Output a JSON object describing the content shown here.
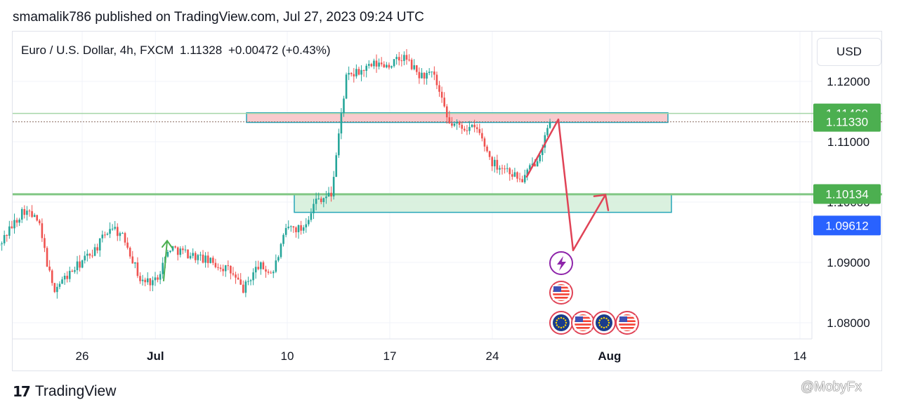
{
  "header": {
    "published_line": "smamalik786 published on TradingView.com, Jul 27, 2023 09:24 UTC"
  },
  "symbol": {
    "name": "Euro / U.S. Dollar, 4h, FXCM",
    "price": "1.11328",
    "change": "+0.00472 (+0.43%)"
  },
  "currency_button": "USD",
  "footer": {
    "brand": "TradingView",
    "watermark": "@MobyFx"
  },
  "colors": {
    "up": "#26a69a",
    "down": "#ef5350",
    "resistance_zone": "#f8c4c8",
    "support_zone": "#d6f0dc",
    "zone_border": "#26a5b8",
    "level_green": "#4caf50",
    "level_blue": "#2962ff",
    "annotation_red": "#e04356",
    "annotation_green": "#4caf50",
    "event_purple": "#8e24aa"
  },
  "chart_data": {
    "type": "candlestick",
    "symbol": "EURUSD",
    "timeframe": "4h",
    "ylim": [
      1.0765,
      1.1265
    ],
    "y_ticks": [
      "1.12000",
      "1.11000",
      "1.10000",
      "1.09000",
      "1.08000"
    ],
    "x_ticks": [
      "26",
      "Jul",
      "10",
      "17",
      "24",
      "Aug",
      "14"
    ],
    "price_labels": [
      {
        "value": 1.11469,
        "label": "1.11469",
        "color": "#4caf50"
      },
      {
        "value": 1.1133,
        "label": "1.11330",
        "color": "#4caf50"
      },
      {
        "value": 1.10134,
        "label": "1.10134",
        "color": "#4caf50"
      },
      {
        "value": 1.09612,
        "label": "1.09612",
        "color": "#2962ff"
      }
    ],
    "horizontal_lines": [
      1.1147,
      1.1013,
      1.1133
    ],
    "zones": [
      {
        "name": "resistance",
        "from_date": "Jul 07",
        "to_date": "Jul 31",
        "low": 1.1132,
        "high": 1.1148
      },
      {
        "name": "support",
        "from_date": "Jul 11",
        "to_date": "Jul 31",
        "low": 1.0983,
        "high": 1.1013
      }
    ],
    "annotation_path": [
      {
        "date": "Jul 26",
        "price": 1.1042
      },
      {
        "date": "Jul 28",
        "price": 1.1137
      },
      {
        "date": "Jul 29",
        "price": 1.092
      },
      {
        "date": "Jul 31",
        "price": 1.1012
      }
    ],
    "anchors": [
      {
        "date": "Jun 20",
        "close": 1.0918
      },
      {
        "date": "Jun 22",
        "close": 1.0988
      },
      {
        "date": "Jun 23",
        "close": 1.0968
      },
      {
        "date": "Jun 24",
        "close": 1.0855
      },
      {
        "date": "Jun 27",
        "close": 1.0925
      },
      {
        "date": "Jun 28",
        "close": 1.0962
      },
      {
        "date": "Jun 29",
        "close": 1.0935
      },
      {
        "date": "Jun 30",
        "close": 1.0868
      },
      {
        "date": "Jul 01",
        "close": 1.087
      },
      {
        "date": "Jul 02",
        "close": 1.0925
      },
      {
        "date": "Jul 04",
        "close": 1.0908
      },
      {
        "date": "Jul 06",
        "close": 1.0888
      },
      {
        "date": "Jul 07",
        "close": 1.0855
      },
      {
        "date": "Jul 08",
        "close": 1.0895
      },
      {
        "date": "Jul 09",
        "close": 1.0882
      },
      {
        "date": "Jul 10",
        "close": 1.0958
      },
      {
        "date": "Jul 11",
        "close": 1.0955
      },
      {
        "date": "Jul 12",
        "close": 1.1005
      },
      {
        "date": "Jul 13",
        "close": 1.1012
      },
      {
        "date": "Jul 14",
        "close": 1.1205
      },
      {
        "date": "Jul 16",
        "close": 1.1228
      },
      {
        "date": "Jul 17",
        "close": 1.1228
      },
      {
        "date": "Jul 18",
        "close": 1.124
      },
      {
        "date": "Jul 19",
        "close": 1.121
      },
      {
        "date": "Jul 20",
        "close": 1.121
      },
      {
        "date": "Jul 21",
        "close": 1.113
      },
      {
        "date": "Jul 22",
        "close": 1.1125
      },
      {
        "date": "Jul 23",
        "close": 1.112
      },
      {
        "date": "Jul 24",
        "close": 1.1065
      },
      {
        "date": "Jul 25",
        "close": 1.1055
      },
      {
        "date": "Jul 26",
        "close": 1.1035
      },
      {
        "date": "Jul 27",
        "close": 1.107
      },
      {
        "date": "Jul 28",
        "close": 1.1133
      }
    ]
  }
}
